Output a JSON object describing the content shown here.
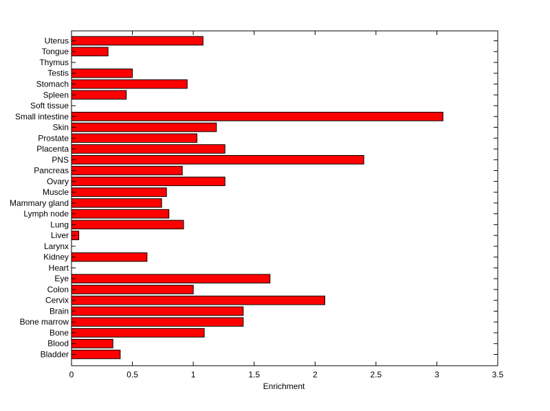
{
  "chart_data": {
    "type": "bar",
    "orientation": "horizontal",
    "title": "",
    "xlabel": "Enrichment",
    "ylabel": "",
    "xlim": [
      0,
      3.5
    ],
    "xticks": [
      "0",
      "0.5",
      "1",
      "1.5",
      "2",
      "2.5",
      "3",
      "3.5"
    ],
    "grid": false,
    "bar_color": "#ff0000",
    "bar_edge_color": "#000000",
    "categories": [
      "Bladder",
      "Blood",
      "Bone",
      "Bone marrow",
      "Brain",
      "Cervix",
      "Colon",
      "Eye",
      "Heart",
      "Kidney",
      "Larynx",
      "Liver",
      "Lung",
      "Lymph node",
      "Mammary gland",
      "Muscle",
      "Ovary",
      "Pancreas",
      "PNS",
      "Placenta",
      "Prostate",
      "Skin",
      "Small intestine",
      "Soft tissue",
      "Spleen",
      "Stomach",
      "Testis",
      "Thymus",
      "Tongue",
      "Uterus"
    ],
    "values": [
      0.4,
      0.34,
      1.09,
      1.41,
      1.41,
      2.08,
      1.0,
      1.63,
      0,
      0.62,
      0,
      0.06,
      0.92,
      0.8,
      0.74,
      0.78,
      1.26,
      0.91,
      2.4,
      1.26,
      1.03,
      1.19,
      3.05,
      0,
      0.45,
      0.95,
      0.5,
      0,
      0.3,
      1.08
    ]
  }
}
